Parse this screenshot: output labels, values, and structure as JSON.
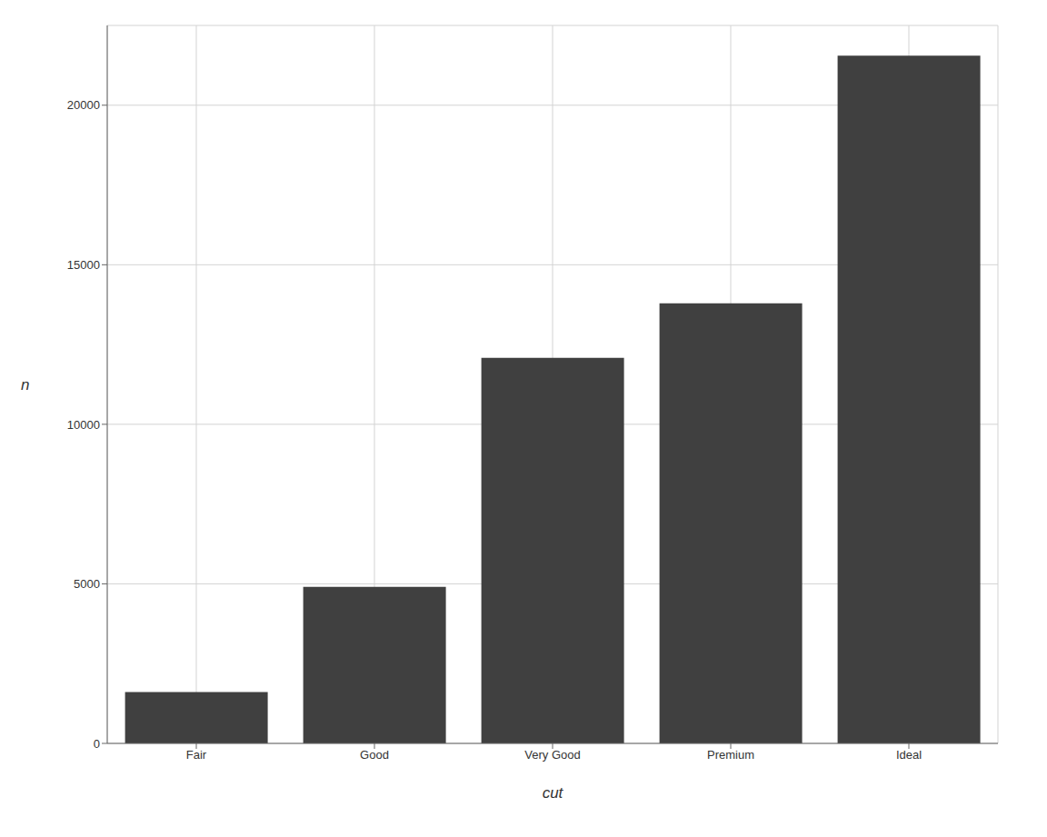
{
  "chart_data": {
    "type": "bar",
    "categories": [
      "Fair",
      "Good",
      "Very Good",
      "Premium",
      "Ideal"
    ],
    "values": [
      1610,
      4906,
      12082,
      13791,
      21551
    ],
    "color": "#404040",
    "xlabel": "cut",
    "ylabel": "n",
    "ylim": [
      0,
      22500
    ],
    "yticks": [
      0,
      5000,
      10000,
      15000,
      20000
    ],
    "grid": true
  }
}
